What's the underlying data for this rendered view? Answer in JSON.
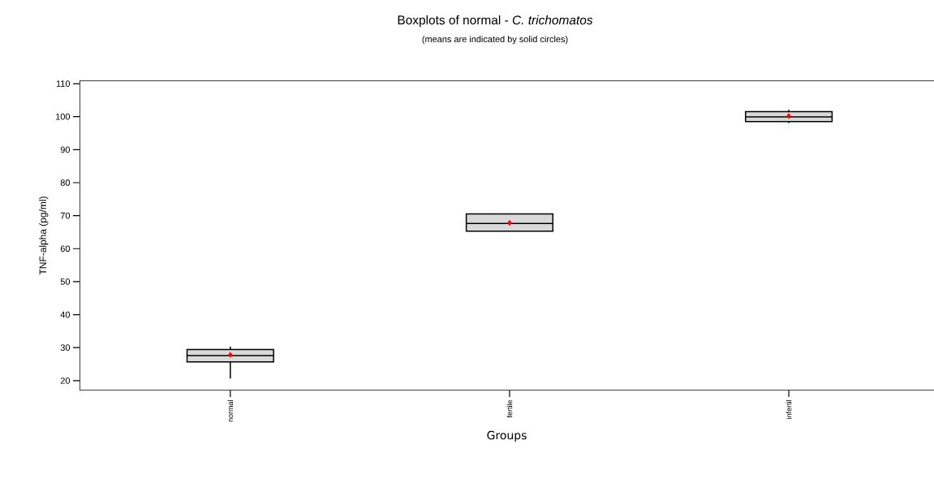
{
  "chart_data": {
    "type": "box",
    "title": "Boxplots of normal - *C. trichomatos*",
    "subtitle": "(means are indicated by solid circles)",
    "xlabel": "Groups",
    "ylabel": "TNF-alpha (pg/ml)",
    "categories": [
      "normal",
      "fertile",
      "infertil"
    ],
    "boxes": [
      {
        "low": 20.6,
        "q1": 25.7,
        "median": 27.6,
        "q3": 29.4,
        "high": 30.3,
        "mean": 27.8
      },
      {
        "low": 65.3,
        "q1": 65.3,
        "median": 67.6,
        "q3": 70.5,
        "high": 70.5,
        "mean": 67.8
      },
      {
        "low": 98.1,
        "q1": 98.5,
        "median": 99.9,
        "q3": 101.5,
        "high": 102.1,
        "mean": 100.2
      }
    ],
    "color": "#d9d9d9",
    "ylim": [
      17,
      111
    ],
    "yticks": [
      20,
      30,
      40,
      50,
      60,
      70,
      80,
      90,
      100,
      110
    ],
    "grid": false
  }
}
